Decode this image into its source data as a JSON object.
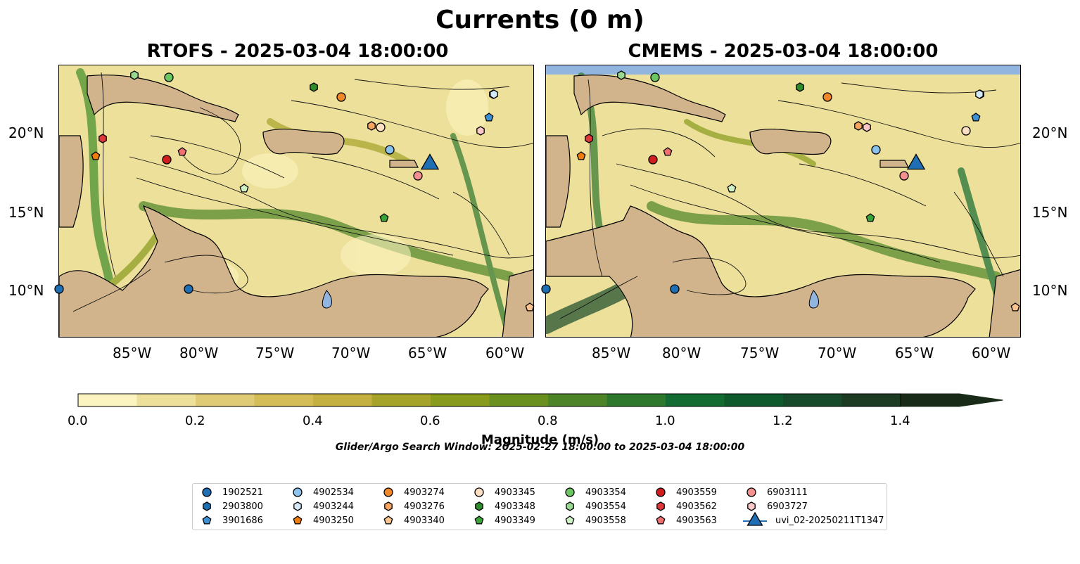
{
  "figure": {
    "title": "Currents (0 m)",
    "panels": [
      {
        "title": "RTOFS - 2025-03-04 18:00:00"
      },
      {
        "title": "CMEMS - 2025-03-04 18:00:00"
      }
    ],
    "lon_ticks": [
      "85°W",
      "80°W",
      "75°W",
      "70°W",
      "65°W",
      "60°W"
    ],
    "lat_ticks": [
      "20°N",
      "15°N",
      "10°N"
    ],
    "colorbar": {
      "label": "Magnitude (m/s)",
      "ticks": [
        "0.0",
        "0.2",
        "0.4",
        "0.6",
        "0.8",
        "1.0",
        "1.2",
        "1.4"
      ],
      "colors": [
        "#fbf3c0",
        "#ede09a",
        "#dfcb76",
        "#d4bc57",
        "#c3b040",
        "#a5a32a",
        "#889b1c",
        "#6a9020",
        "#4d8428",
        "#2d782d",
        "#126b30",
        "#0e5a2c",
        "#174a2a",
        "#1d3b23",
        "#1a2a18"
      ]
    },
    "search_window": "Glider/Argo Search Window: 2025-02-27 18:00:00 to 2025-03-04 18:00:00"
  },
  "legend": {
    "items": [
      {
        "label": "1902521",
        "marker": "circle",
        "color": "#1f6fb4"
      },
      {
        "label": "2903800",
        "marker": "hexagon",
        "color": "#1f6fb4"
      },
      {
        "label": "3901686",
        "marker": "pentagon",
        "color": "#3d8fd6"
      },
      {
        "label": "4902534",
        "marker": "circle",
        "color": "#8cc3ec"
      },
      {
        "label": "4903244",
        "marker": "hexagon",
        "color": "#d4e8f7"
      },
      {
        "label": "4903250",
        "marker": "pentagon",
        "color": "#f07c0d"
      },
      {
        "label": "4903274",
        "marker": "circle",
        "color": "#f0882a"
      },
      {
        "label": "4903276",
        "marker": "hexagon",
        "color": "#f5a560"
      },
      {
        "label": "4903340",
        "marker": "pentagon",
        "color": "#fbc48e"
      },
      {
        "label": "4903345",
        "marker": "circle",
        "color": "#fde0c4"
      },
      {
        "label": "4903348",
        "marker": "hexagon",
        "color": "#2f8c2a"
      },
      {
        "label": "4903349",
        "marker": "pentagon",
        "color": "#38a336"
      },
      {
        "label": "4903354",
        "marker": "circle",
        "color": "#6cc662"
      },
      {
        "label": "4903554",
        "marker": "hexagon",
        "color": "#98d890"
      },
      {
        "label": "4903558",
        "marker": "pentagon",
        "color": "#cdf1c5"
      },
      {
        "label": "4903559",
        "marker": "circle",
        "color": "#d11d1d"
      },
      {
        "label": "4903562",
        "marker": "hexagon",
        "color": "#e0393b"
      },
      {
        "label": "4903563",
        "marker": "pentagon",
        "color": "#f07070"
      },
      {
        "label": "6903111",
        "marker": "circle",
        "color": "#f49090"
      },
      {
        "label": "6903727",
        "marker": "hexagon",
        "color": "#fbc8c8"
      },
      {
        "label": "uvi_02-20250211T1347",
        "marker": "triangle-line",
        "color": "#1f6fb4"
      }
    ]
  },
  "map_style": {
    "land": "#d2b48c",
    "water_bg": "#ede09a",
    "lakes": "#92b5e0",
    "glider_color": "#1f6fb4"
  }
}
